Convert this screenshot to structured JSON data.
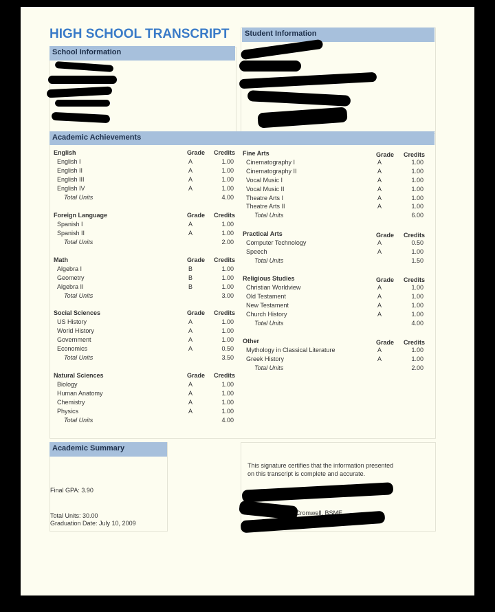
{
  "header": {
    "title": "HIGH SCHOOL TRANSCRIPT"
  },
  "school": {
    "heading": "School Information"
  },
  "student": {
    "heading": "Student Information"
  },
  "achievements": {
    "heading": "Academic Achievements",
    "grade_label": "Grade",
    "credits_label": "Credits",
    "left": [
      {
        "name": "English",
        "courses": [
          [
            "English I",
            "A",
            "1.00"
          ],
          [
            "English II",
            "A",
            "1.00"
          ],
          [
            "English III",
            "A",
            "1.00"
          ],
          [
            "English IV",
            "A",
            "1.00"
          ]
        ],
        "total_label": "Total Units",
        "total": "4.00"
      },
      {
        "name": "Foreign Language",
        "courses": [
          [
            "Spanish I",
            "A",
            "1.00"
          ],
          [
            "Spanish II",
            "A",
            "1.00"
          ]
        ],
        "total_label": "Total Units",
        "total": "2.00"
      },
      {
        "name": "Math",
        "courses": [
          [
            "Algebra I",
            "B",
            "1.00"
          ],
          [
            "Geometry",
            "B",
            "1.00"
          ],
          [
            "Algebra II",
            "B",
            "1.00"
          ]
        ],
        "total_label": "Total Units",
        "total": "3.00"
      },
      {
        "name": "Social Sciences",
        "courses": [
          [
            "US History",
            "A",
            "1.00"
          ],
          [
            "World History",
            "A",
            "1.00"
          ],
          [
            "Government",
            "A",
            "1.00"
          ],
          [
            "Economics",
            "A",
            "0.50"
          ]
        ],
        "total_label": "Total Units",
        "total": "3.50"
      },
      {
        "name": "Natural Sciences",
        "courses": [
          [
            "Biology",
            "A",
            "1.00"
          ],
          [
            "Human Anatomy",
            "A",
            "1.00"
          ],
          [
            "Chemistry",
            "A",
            "1.00"
          ],
          [
            "Physics",
            "A",
            "1.00"
          ]
        ],
        "total_label": "Total Units",
        "total": "4.00"
      }
    ],
    "right": [
      {
        "name": "Fine Arts",
        "courses": [
          [
            "Cinematography I",
            "A",
            "1.00"
          ],
          [
            "Cinematography II",
            "A",
            "1.00"
          ],
          [
            "Vocal Music I",
            "A",
            "1.00"
          ],
          [
            "Vocal Music II",
            "A",
            "1.00"
          ],
          [
            "Theatre Arts I",
            "A",
            "1.00"
          ],
          [
            "Theatre Arts II",
            "A",
            "1.00"
          ]
        ],
        "total_label": "Total Units",
        "total": "6.00"
      },
      {
        "name": "Practical Arts",
        "courses": [
          [
            "Computer Technology",
            "A",
            "0.50"
          ],
          [
            "Speech",
            "A",
            "1.00"
          ]
        ],
        "total_label": "Total Units",
        "total": "1.50"
      },
      {
        "name": "Religious Studies",
        "courses": [
          [
            "Christian Worldview",
            "A",
            "1.00"
          ],
          [
            "Old Testament",
            "A",
            "1.00"
          ],
          [
            "New Testament",
            "A",
            "1.00"
          ],
          [
            "Church History",
            "A",
            "1.00"
          ]
        ],
        "total_label": "Total Units",
        "total": "4.00"
      },
      {
        "name": "Other",
        "courses": [
          [
            "Mythology in Classical Literature",
            "A",
            "1.00"
          ],
          [
            "Greek History",
            "A",
            "1.00"
          ]
        ],
        "total_label": "Total Units",
        "total": "2.00"
      }
    ]
  },
  "summary": {
    "heading": "Academic Summary",
    "gpa": "Final GPA: 3.90",
    "units": "Total Units: 30.00",
    "graduation": "Graduation Date: July 10, 2009"
  },
  "signature": {
    "statement": "This signature certifies that the information presented on this transcript is complete and accurate.",
    "signer": "Cromwell, BSME"
  }
}
